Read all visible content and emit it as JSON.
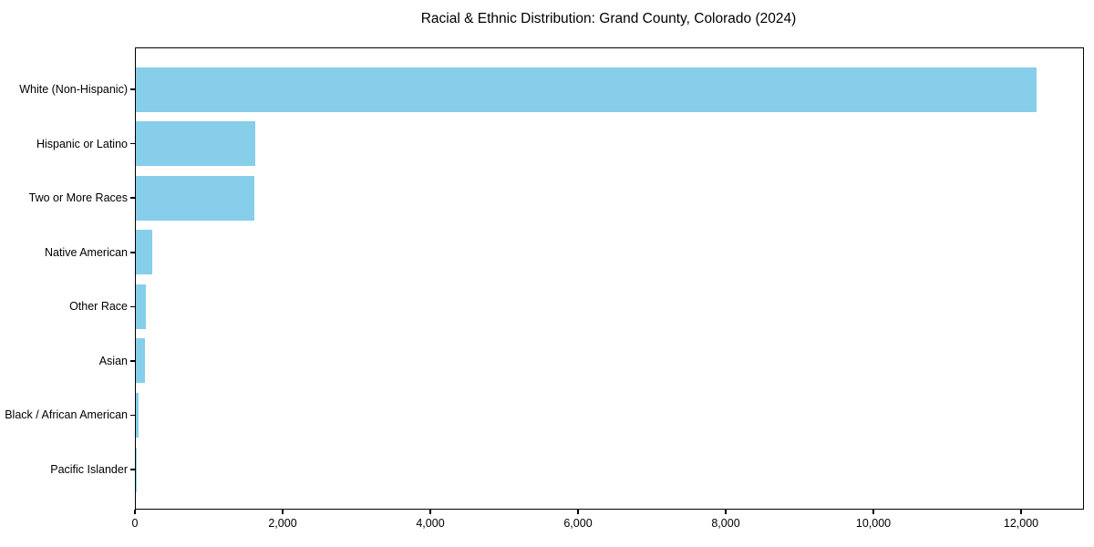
{
  "title": "Racial & Ethnic Distribution: Grand County, Colorado (2024)",
  "chart_data": {
    "type": "bar",
    "orientation": "horizontal",
    "title": "Racial & Ethnic Distribution: Grand County, Colorado (2024)",
    "xlabel": "",
    "ylabel": "",
    "categories": [
      "White (Non-Hispanic)",
      "Hispanic or Latino",
      "Two or More Races",
      "Native American",
      "Other Race",
      "Asian",
      "Black / African American",
      "Pacific Islander"
    ],
    "values": [
      12200,
      1620,
      1600,
      220,
      131,
      128,
      36,
      4
    ],
    "x_ticks": [
      0,
      2000,
      4000,
      6000,
      8000,
      10000,
      12000
    ],
    "x_tick_labels": [
      "0",
      "2,000",
      "4,000",
      "6,000",
      "8,000",
      "10,000",
      "12,000"
    ],
    "xlim": [
      0,
      12827
    ],
    "bar_color": "#87CEEB",
    "axis_color": "#000000",
    "text_color": "#000000",
    "background_color": "#ffffff",
    "grid": false,
    "legend": false
  }
}
